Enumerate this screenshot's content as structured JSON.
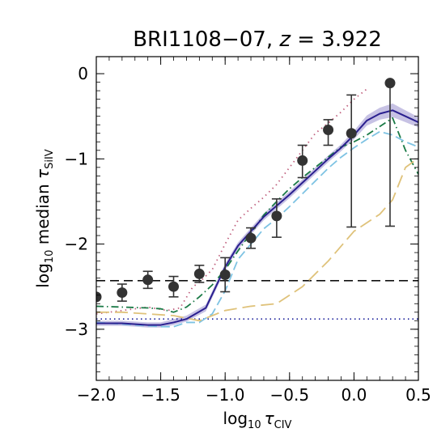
{
  "chart_data": {
    "type": "line",
    "title": "BRI1108−07, z = 3.922",
    "title_parts": {
      "name": "BRI1108−07, ",
      "var": "z",
      "rest": " = 3.922"
    },
    "xlabel": {
      "prefix": "log",
      "sub": "10",
      "var": "τ",
      "ion": "CIV"
    },
    "ylabel": {
      "prefix": "log",
      "sub": "10",
      "mid": " median ",
      "var": "τ",
      "ion": "SiIV"
    },
    "xlim": [
      -2.0,
      0.5
    ],
    "ylim": [
      -3.6,
      0.2
    ],
    "xticks": [
      -2.0,
      -1.5,
      -1.0,
      -0.5,
      0.0,
      0.5
    ],
    "xtick_labels": [
      "−2.0",
      "−1.5",
      "−1.0",
      "−0.5",
      "0.0",
      "0.5"
    ],
    "yticks": [
      0,
      -1,
      -2,
      -3
    ],
    "ytick_labels": [
      "0",
      "−1",
      "−2",
      "−3"
    ],
    "grid": false,
    "observations": {
      "x": [
        -2.0,
        -1.8,
        -1.6,
        -1.4,
        -1.2,
        -1.0,
        -0.8,
        -0.6,
        -0.4,
        -0.2,
        -0.02,
        0.28
      ],
      "y": [
        -2.62,
        -2.57,
        -2.42,
        -2.5,
        -2.35,
        -2.36,
        -1.93,
        -1.67,
        -1.02,
        -0.66,
        -0.7,
        -0.11
      ],
      "yerr_low": [
        0.0,
        0.1,
        0.1,
        0.12,
        0.1,
        0.2,
        0.12,
        0.25,
        0.2,
        0.18,
        1.1,
        1.68
      ],
      "yerr_high": [
        0.0,
        0.1,
        0.1,
        0.12,
        0.1,
        0.2,
        0.12,
        0.2,
        0.18,
        0.12,
        0.45,
        0.0
      ],
      "color": "#333333"
    },
    "series": [
      {
        "style": "solid",
        "color": "#2a1f8f",
        "x": [
          -2.0,
          -1.8,
          -1.6,
          -1.5,
          -1.4,
          -1.3,
          -1.15,
          -1.0,
          -0.9,
          -0.8,
          -0.7,
          -0.6,
          -0.5,
          -0.4,
          -0.3,
          -0.2,
          -0.1,
          0.0,
          0.1,
          0.2,
          0.3,
          0.4,
          0.5
        ],
        "values": [
          -2.93,
          -2.93,
          -2.95,
          -2.95,
          -2.92,
          -2.88,
          -2.75,
          -2.27,
          -2.02,
          -1.85,
          -1.68,
          -1.55,
          -1.42,
          -1.28,
          -1.14,
          -1.0,
          -0.87,
          -0.72,
          -0.55,
          -0.47,
          -0.43,
          -0.5,
          -0.57
        ],
        "band_low": [
          -2.96,
          -2.96,
          -2.98,
          -2.98,
          -2.95,
          -2.91,
          -2.79,
          -2.31,
          -2.06,
          -1.89,
          -1.72,
          -1.59,
          -1.46,
          -1.32,
          -1.18,
          -1.04,
          -0.91,
          -0.77,
          -0.61,
          -0.54,
          -0.51,
          -0.57,
          -0.63
        ],
        "band_high": [
          -2.9,
          -2.9,
          -2.92,
          -2.92,
          -2.88,
          -2.84,
          -2.71,
          -2.23,
          -1.98,
          -1.81,
          -1.64,
          -1.51,
          -1.38,
          -1.24,
          -1.1,
          -0.96,
          -0.83,
          -0.67,
          -0.49,
          -0.4,
          -0.35,
          -0.43,
          -0.51
        ],
        "band_color": "#b9b3dd"
      },
      {
        "style": "dotted",
        "color": "#c0607e",
        "x": [
          -2.0,
          -1.8,
          -1.6,
          -1.45,
          -1.35,
          -1.25,
          -1.2,
          -1.1,
          -1.0,
          -0.9,
          -0.8,
          -0.7,
          -0.6,
          -0.5,
          -0.4,
          -0.3,
          -0.2,
          -0.1,
          0.0,
          0.1
        ],
        "values": [
          -2.82,
          -2.78,
          -2.74,
          -2.78,
          -2.75,
          -2.5,
          -2.45,
          -2.3,
          -2.0,
          -1.72,
          -1.58,
          -1.45,
          -1.3,
          -1.1,
          -0.9,
          -0.7,
          -0.58,
          -0.45,
          -0.3,
          -0.18
        ]
      },
      {
        "style": "dashdot",
        "color": "#1a7a46",
        "x": [
          -2.0,
          -1.8,
          -1.6,
          -1.5,
          -1.4,
          -1.3,
          -1.2,
          -1.1,
          -1.0,
          -0.9,
          -0.8,
          -0.7,
          -0.6,
          -0.5,
          -0.4,
          -0.3,
          -0.2,
          -0.1,
          0.0,
          0.1,
          0.2,
          0.3,
          0.4,
          0.5
        ],
        "values": [
          -2.73,
          -2.74,
          -2.75,
          -2.76,
          -2.8,
          -2.74,
          -2.62,
          -2.48,
          -2.3,
          -2.08,
          -1.87,
          -1.66,
          -1.5,
          -1.35,
          -1.22,
          -1.1,
          -0.98,
          -0.86,
          -0.8,
          -0.72,
          -0.62,
          -0.52,
          -0.9,
          -1.18
        ]
      },
      {
        "style": "dashed",
        "color": "#7ec3e3",
        "x": [
          -2.0,
          -1.8,
          -1.6,
          -1.5,
          -1.4,
          -1.3,
          -1.2,
          -1.1,
          -1.0,
          -0.9,
          -0.8,
          -0.7,
          -0.6,
          -0.5,
          -0.4,
          -0.3,
          -0.2,
          -0.1,
          0.0,
          0.1,
          0.2,
          0.3,
          0.4,
          0.5
        ],
        "values": [
          -2.92,
          -2.94,
          -2.96,
          -2.97,
          -2.97,
          -2.92,
          -2.92,
          -2.82,
          -2.55,
          -2.18,
          -2.0,
          -1.82,
          -1.7,
          -1.56,
          -1.41,
          -1.26,
          -1.11,
          -0.98,
          -0.87,
          -0.77,
          -0.68,
          -0.72,
          -0.8,
          -0.86
        ]
      },
      {
        "style": "longdash",
        "color": "#dfc27a",
        "x": [
          -2.0,
          -1.8,
          -1.6,
          -1.4,
          -1.2,
          -1.0,
          -0.8,
          -0.6,
          -0.5,
          -0.4,
          -0.2,
          0.0,
          0.2,
          0.3,
          0.4,
          0.5
        ],
        "values": [
          -2.8,
          -2.8,
          -2.82,
          -2.84,
          -2.9,
          -2.78,
          -2.73,
          -2.7,
          -2.6,
          -2.5,
          -2.2,
          -1.85,
          -1.65,
          -1.48,
          -1.1,
          -0.99
        ]
      }
    ],
    "hlines": [
      {
        "y": -2.43,
        "style": "dashed",
        "color": "#111111"
      },
      {
        "y": -2.88,
        "style": "dotted",
        "color": "#1a1f9a"
      }
    ]
  }
}
